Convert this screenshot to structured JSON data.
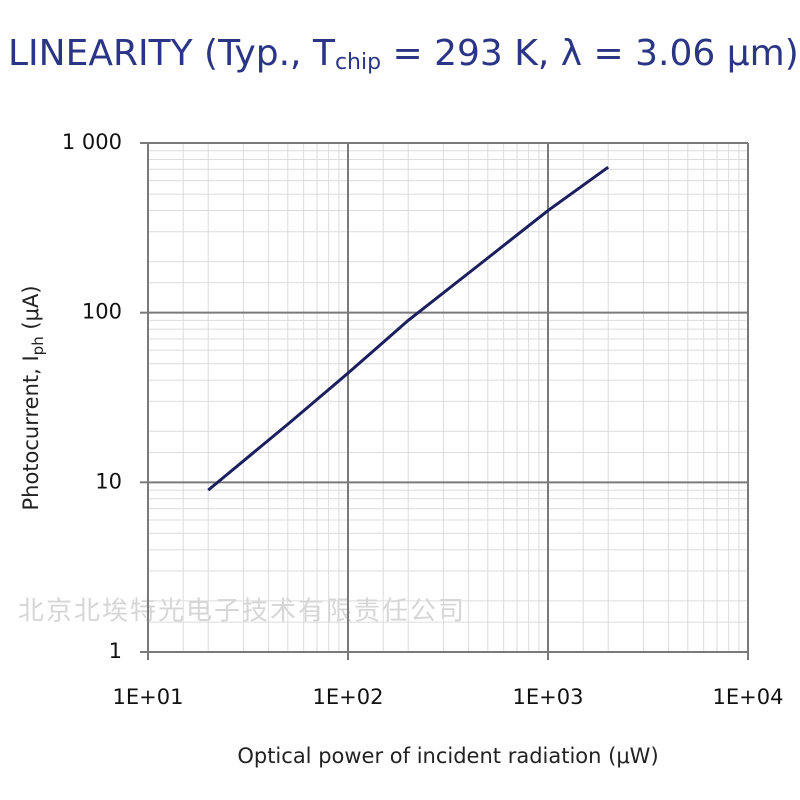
{
  "chart_data": {
    "type": "line",
    "title": [
      "LINEARITY (Typ., T",
      "chip",
      " = 293 K, λ = 3.06 μm)"
    ],
    "x_label": "Optical power of incident radiation (μW)",
    "y_label": [
      "Photocurrent, I",
      "ph",
      " (μA)"
    ],
    "watermark": "北京北埃特光电子技术有限责任公司",
    "x_scale": "log",
    "y_scale": "log",
    "grid": true,
    "minor_grid": true,
    "xlim": [
      10,
      10000
    ],
    "xticks": [
      {
        "value": 10,
        "label": "1E+01"
      },
      {
        "value": 100,
        "label": "1E+02"
      },
      {
        "value": 1000,
        "label": "1E+03"
      },
      {
        "value": 10000,
        "label": "1E+04"
      }
    ],
    "ylim": [
      1,
      1000
    ],
    "yticks": [
      1,
      10,
      100,
      {
        "value": 1000,
        "label": "1 000"
      }
    ],
    "series": [
      {
        "color": "#1b1f5e",
        "x": [
          20,
          50,
          100,
          200,
          500,
          1000,
          2000
        ],
        "values": [
          9,
          22,
          44,
          90,
          210,
          400,
          720
        ]
      }
    ]
  }
}
